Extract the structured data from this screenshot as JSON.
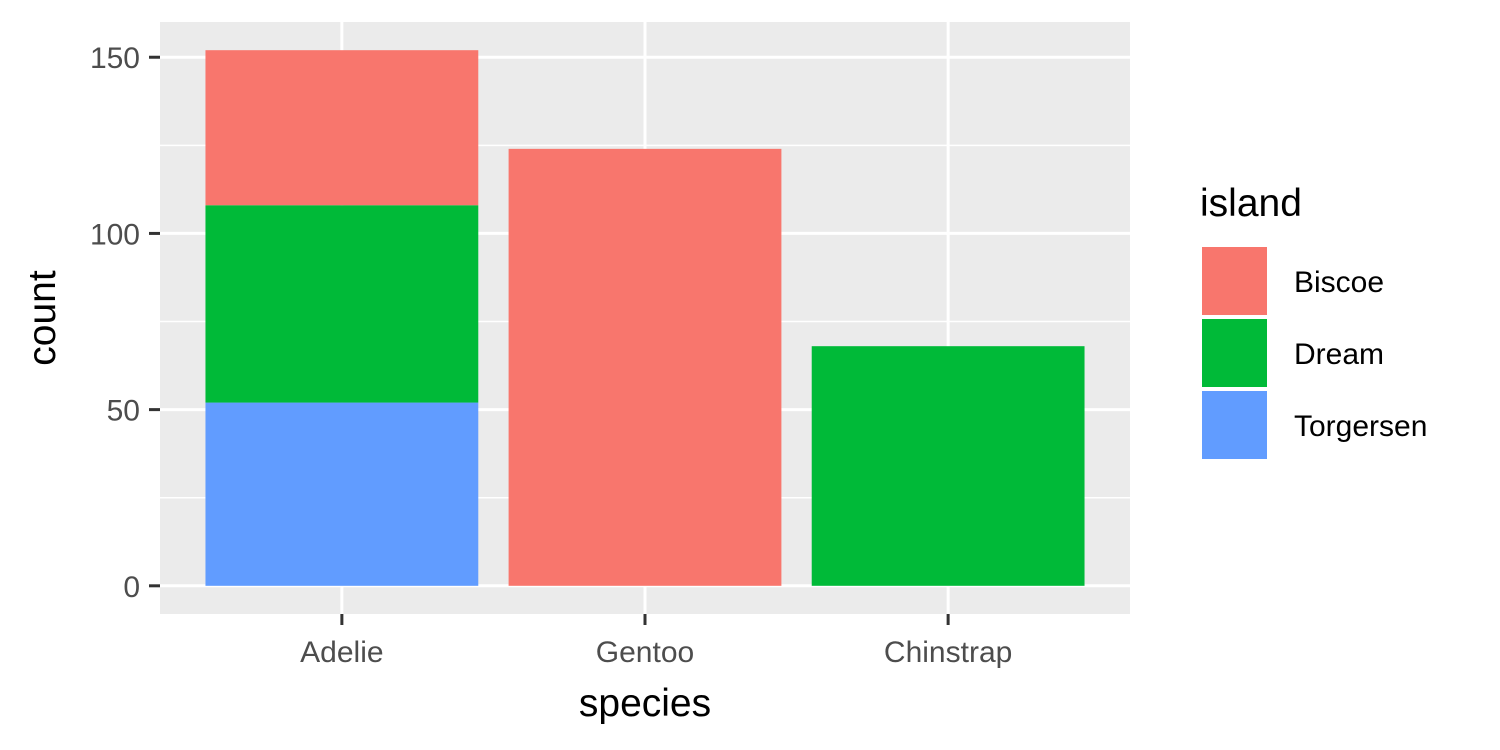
{
  "chart_data": {
    "type": "bar",
    "stacked": true,
    "categories": [
      "Adelie",
      "Gentoo",
      "Chinstrap"
    ],
    "series": [
      {
        "name": "Biscoe",
        "color": "#F8766D",
        "values": [
          44,
          124,
          0
        ]
      },
      {
        "name": "Dream",
        "color": "#00BA38",
        "values": [
          56,
          0,
          68
        ]
      },
      {
        "name": "Torgersen",
        "color": "#619CFF",
        "values": [
          52,
          0,
          0
        ]
      }
    ],
    "stack_order_bottom_to_top": [
      "Torgersen",
      "Dream",
      "Biscoe"
    ],
    "xlabel": "species",
    "ylabel": "count",
    "ylim": [
      -8,
      160
    ],
    "yticks": [
      0,
      50,
      100,
      150
    ],
    "legend": {
      "title": "island",
      "position": "right"
    },
    "grid": true,
    "panel_background": "#EBEBEB",
    "grid_color": "#FFFFFF"
  }
}
